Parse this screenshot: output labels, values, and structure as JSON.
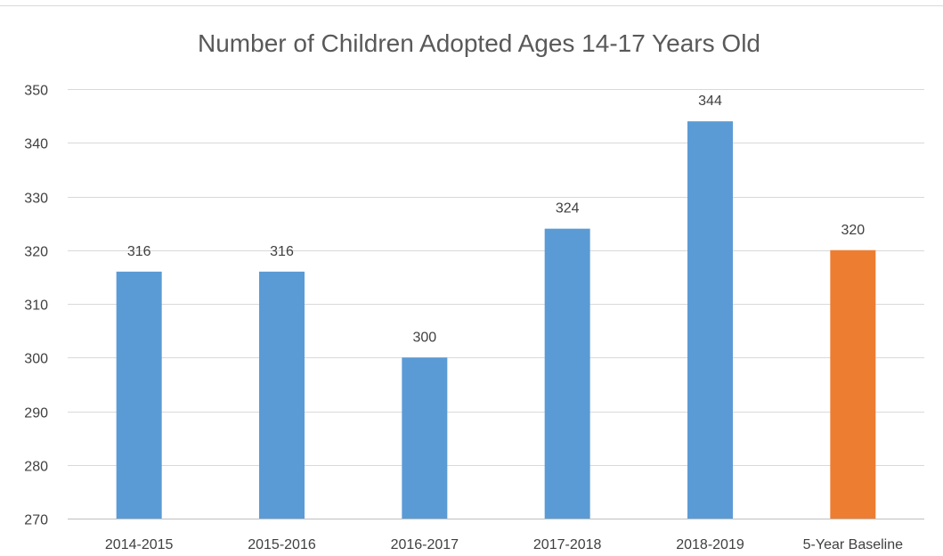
{
  "chart_data": {
    "type": "bar",
    "title": "Number of Children Adopted Ages 14-17 Years Old",
    "xlabel": "",
    "ylabel": "",
    "categories": [
      "2014-2015",
      "2015-2016",
      "2016-2017",
      "2017-2018",
      "2018-2019",
      "5-Year Baseline"
    ],
    "values": [
      316,
      316,
      300,
      324,
      344,
      320
    ],
    "bar_colors": [
      "#5b9bd5",
      "#5b9bd5",
      "#5b9bd5",
      "#5b9bd5",
      "#5b9bd5",
      "#ed7d31"
    ],
    "data_labels": [
      "316",
      "316",
      "300",
      "324",
      "344",
      "320"
    ],
    "ylim": [
      270,
      350
    ],
    "y_ticks": [
      270,
      280,
      290,
      300,
      310,
      320,
      330,
      340,
      350
    ],
    "grid": true,
    "legend": "none",
    "colors": {
      "series": "#5b9bd5",
      "baseline": "#ed7d31",
      "grid": "#d9d9d9",
      "text": "#404040",
      "title": "#595959"
    }
  }
}
